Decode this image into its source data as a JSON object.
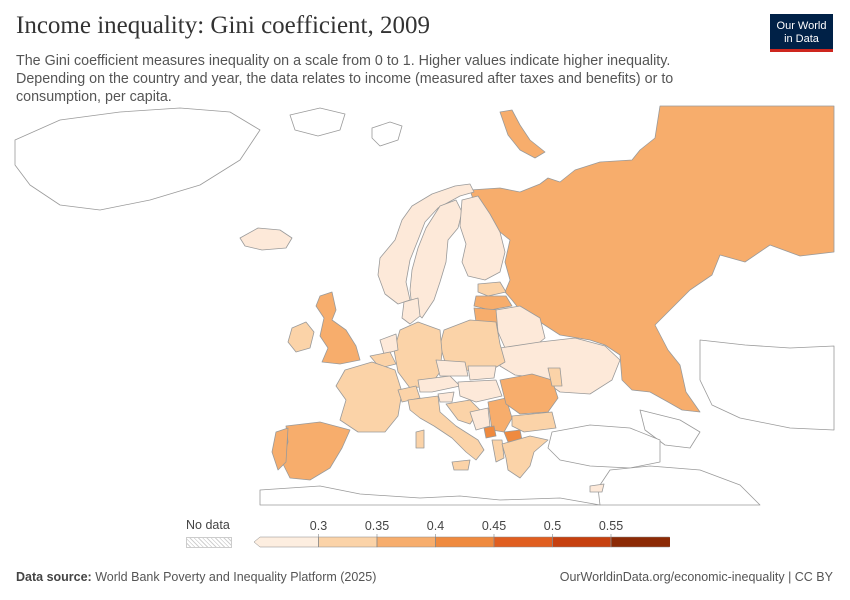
{
  "header": {
    "title": "Income inequality: Gini coefficient, 2009",
    "subtitle": "The Gini coefficient measures inequality on a scale from 0 to 1. Higher values indicate higher inequality. Depending on the country and year, the data relates to income (measured after taxes and benefits) or to consumption, per capita."
  },
  "logo": {
    "line1": "Our World",
    "line2": "in Data"
  },
  "legend": {
    "no_data_label": "No data",
    "ticks": [
      "0.3",
      "0.35",
      "0.4",
      "0.45",
      "0.5",
      "0.55"
    ],
    "colors": [
      "#fdeee0",
      "#fbd3a8",
      "#f7ad6c",
      "#ef8a3f",
      "#e05e20",
      "#c6400f",
      "#8c2a05"
    ]
  },
  "colors": {
    "land_nodata": "#ffffff",
    "border": "#9a9a9a",
    "c_low": "#fde9d9",
    "c_mid": "#fbd3a8",
    "c_high": "#f7ad6c",
    "c_higher": "#ef8a3f"
  },
  "footer": {
    "source_label": "Data source:",
    "source_value": "World Bank Poverty and Inequality Platform (2025)",
    "link": "OurWorldinData.org/economic-inequality | CC BY"
  }
}
